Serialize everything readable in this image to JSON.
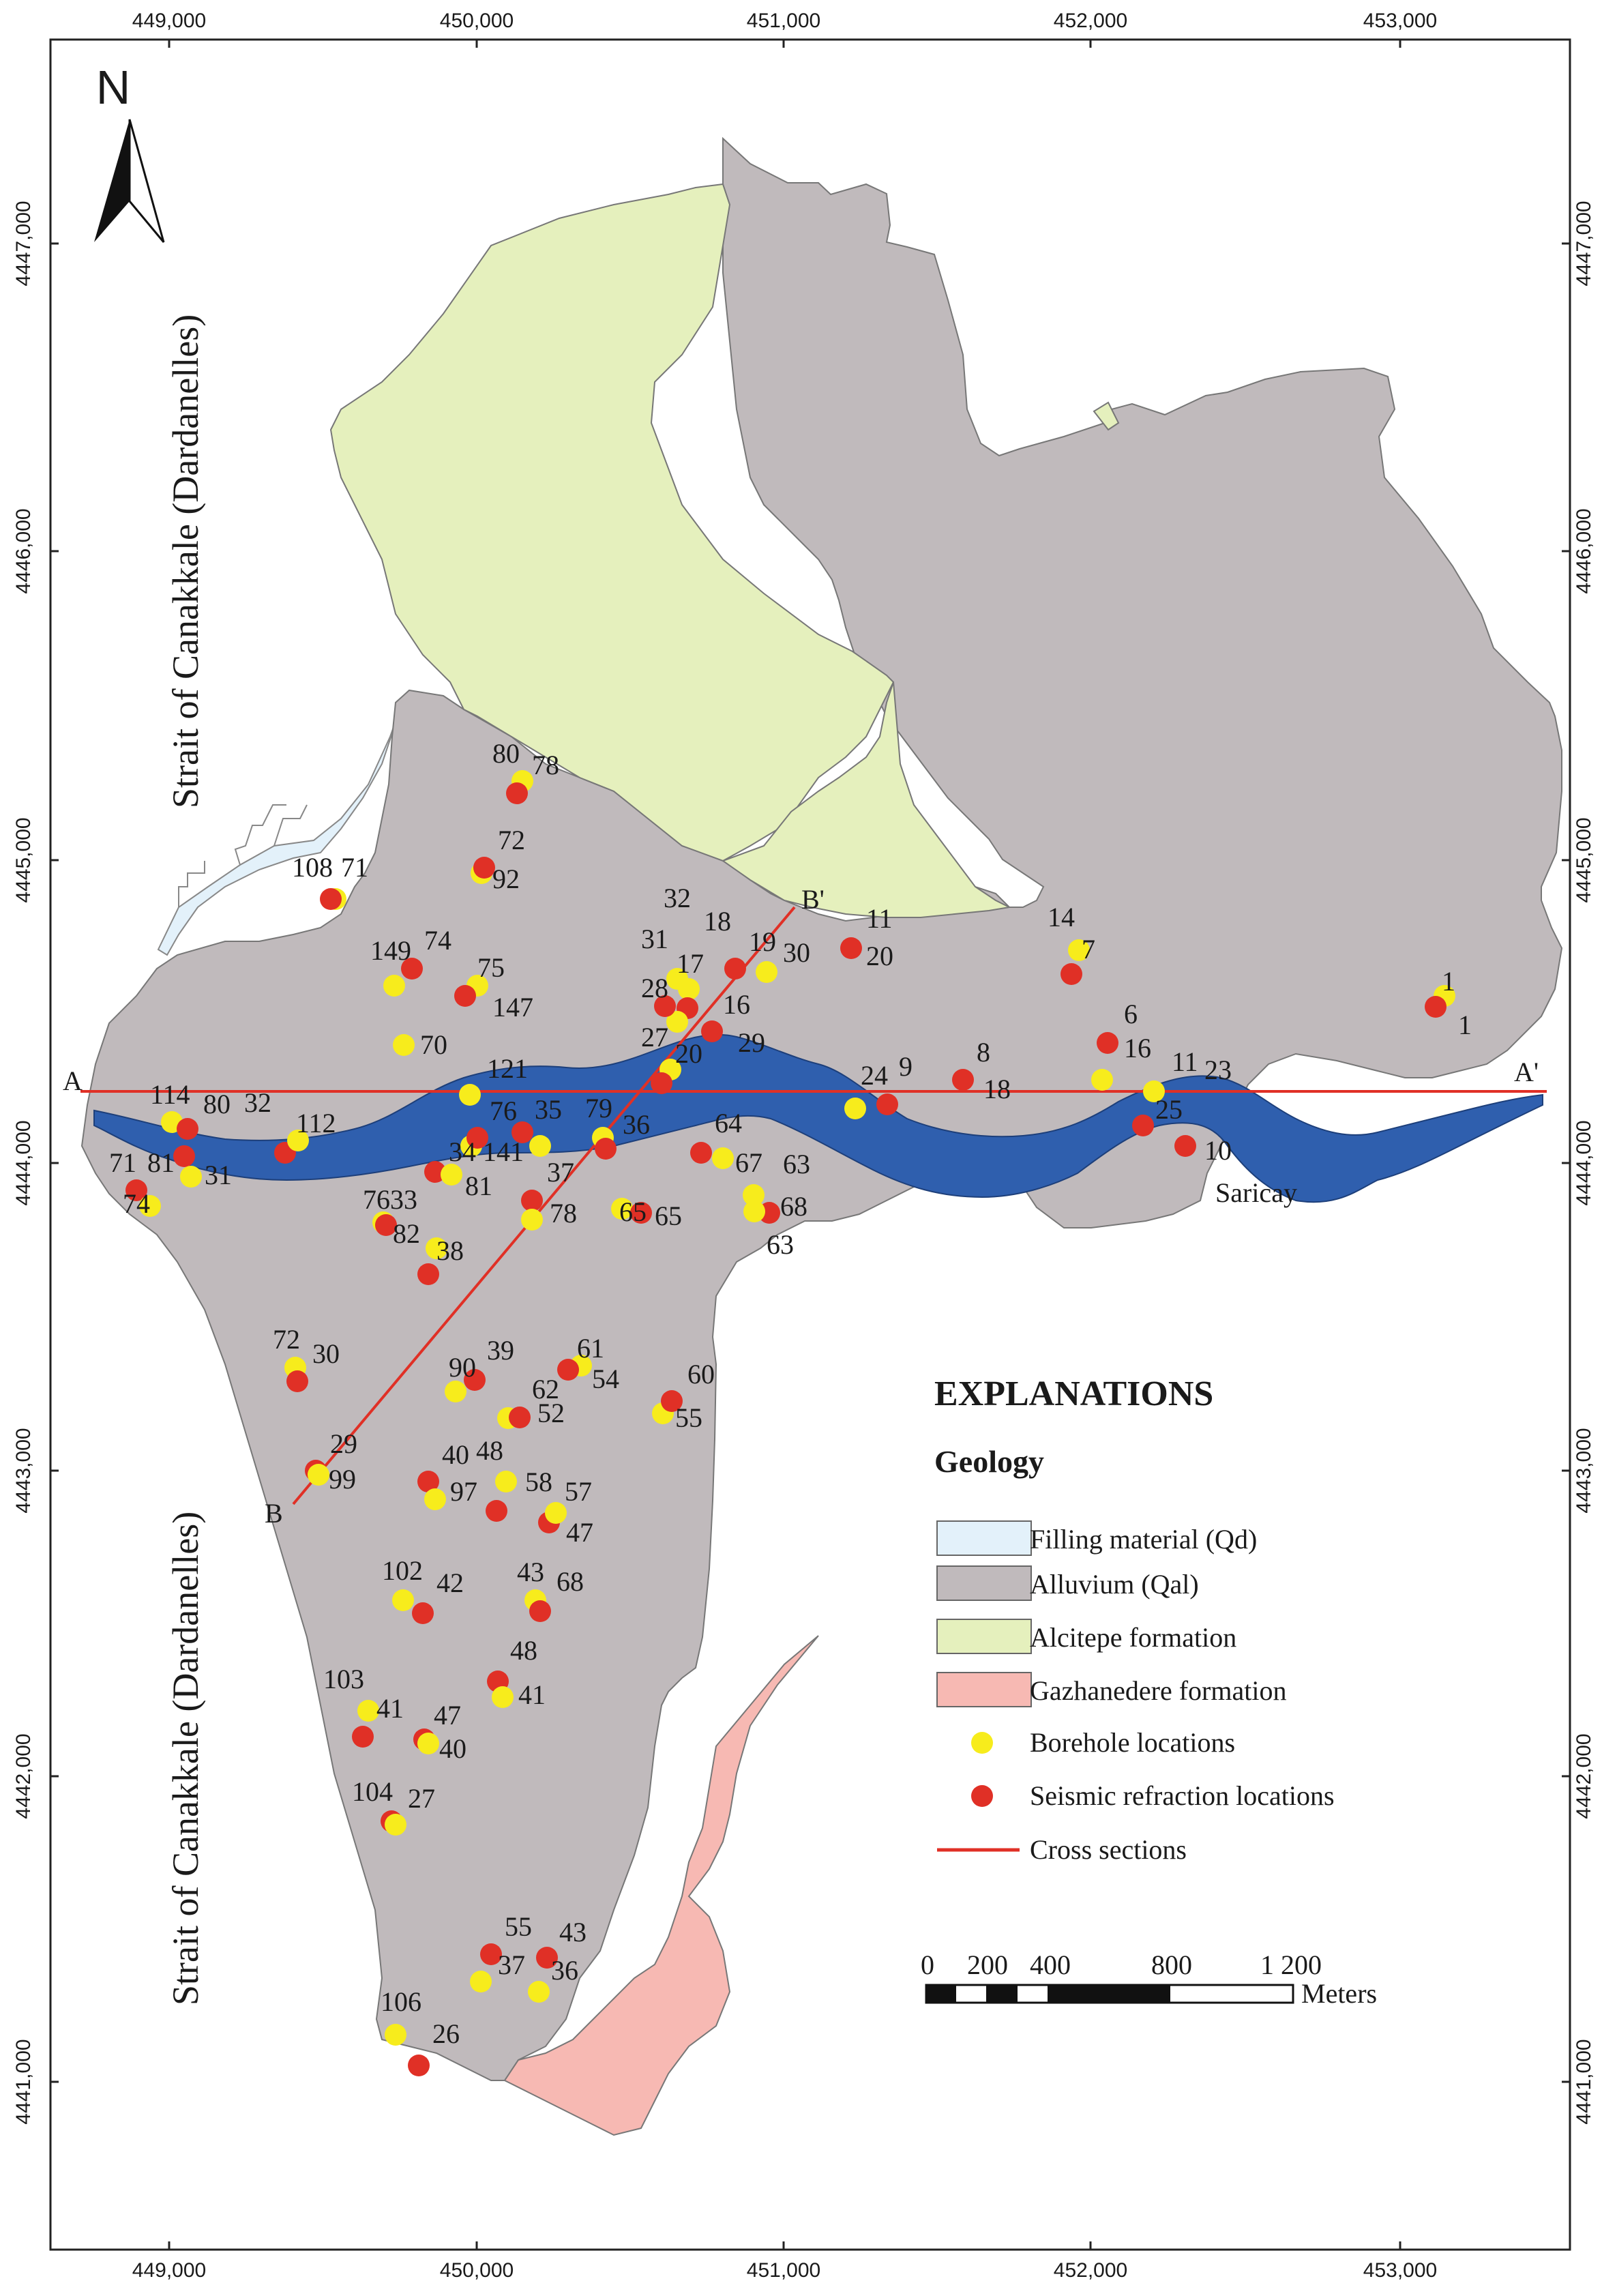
{
  "map": {
    "x_ticks": [
      "449,000",
      "450,000",
      "451,000",
      "452,000",
      "453,000"
    ],
    "y_ticks": [
      "4447,000",
      "4446,000",
      "4445,000",
      "4444,000",
      "4443,000",
      "4442,000",
      "4441,000"
    ],
    "strait_label": "Strait of Canakkale (Dardanelles)",
    "river_label": "Saricay",
    "north_label": "N",
    "section_labels": {
      "A": "A",
      "A_prime": "A'",
      "B": "B",
      "B_prime": "B'"
    },
    "colors": {
      "alluvium": "#c0babc",
      "alcitepe": "#e5f0bd",
      "gazhanedere": "#f7b9b3",
      "filling": "#e3f1fa",
      "river": "#2f5fae",
      "borehole": "#f7ec1c",
      "seismic": "#e03026",
      "section_line": "#e03026"
    }
  },
  "legend": {
    "title": "EXPLANATIONS",
    "subtitle": "Geology",
    "items": [
      {
        "label": "Filling material (Qd)",
        "type": "swatch",
        "color": "#e3f1fa"
      },
      {
        "label": "Alluvium (Qal)",
        "type": "swatch",
        "color": "#c0babc"
      },
      {
        "label": "Alcitepe formation",
        "type": "swatch",
        "color": "#e5f0bd"
      },
      {
        "label": "Gazhanedere formation",
        "type": "swatch",
        "color": "#f7b9b3"
      },
      {
        "label": "Borehole locations",
        "type": "dot",
        "color": "#f7ec1c"
      },
      {
        "label": "Seismic refraction locations",
        "type": "dot",
        "color": "#e03026"
      },
      {
        "label": "Cross sections",
        "type": "line",
        "color": "#e03026"
      }
    ]
  },
  "scale_bar": {
    "labels": [
      "0",
      "200",
      "400",
      "800",
      "1 200"
    ],
    "unit": "Meters"
  },
  "point_labels": [
    "80",
    "78",
    "72",
    "92",
    "108",
    "71",
    "149",
    "74",
    "75",
    "147",
    "70",
    "121",
    "114",
    "80",
    "32",
    "112",
    "81",
    "31",
    "71",
    "74",
    "76",
    "35",
    "34",
    "141",
    "81",
    "79",
    "36",
    "37",
    "78",
    "7633",
    "82",
    "38",
    "32",
    "18",
    "31",
    "17",
    "19",
    "30",
    "28",
    "16",
    "29",
    "27",
    "20",
    "11",
    "20",
    "14",
    "7",
    "1",
    "1",
    "6",
    "16",
    "11",
    "25",
    "23",
    "10",
    "24",
    "9",
    "8",
    "18",
    "64",
    "67",
    "63",
    "68",
    "63",
    "65",
    "65",
    "72",
    "30",
    "90",
    "39",
    "61",
    "54",
    "62",
    "52",
    "60",
    "55",
    "29",
    "99",
    "40",
    "48",
    "97",
    "58",
    "57",
    "47",
    "102",
    "42",
    "43",
    "68",
    "103",
    "41",
    "48",
    "41",
    "47",
    "40",
    "104",
    "27",
    "55",
    "43",
    "37",
    "36",
    "106",
    "26"
  ]
}
